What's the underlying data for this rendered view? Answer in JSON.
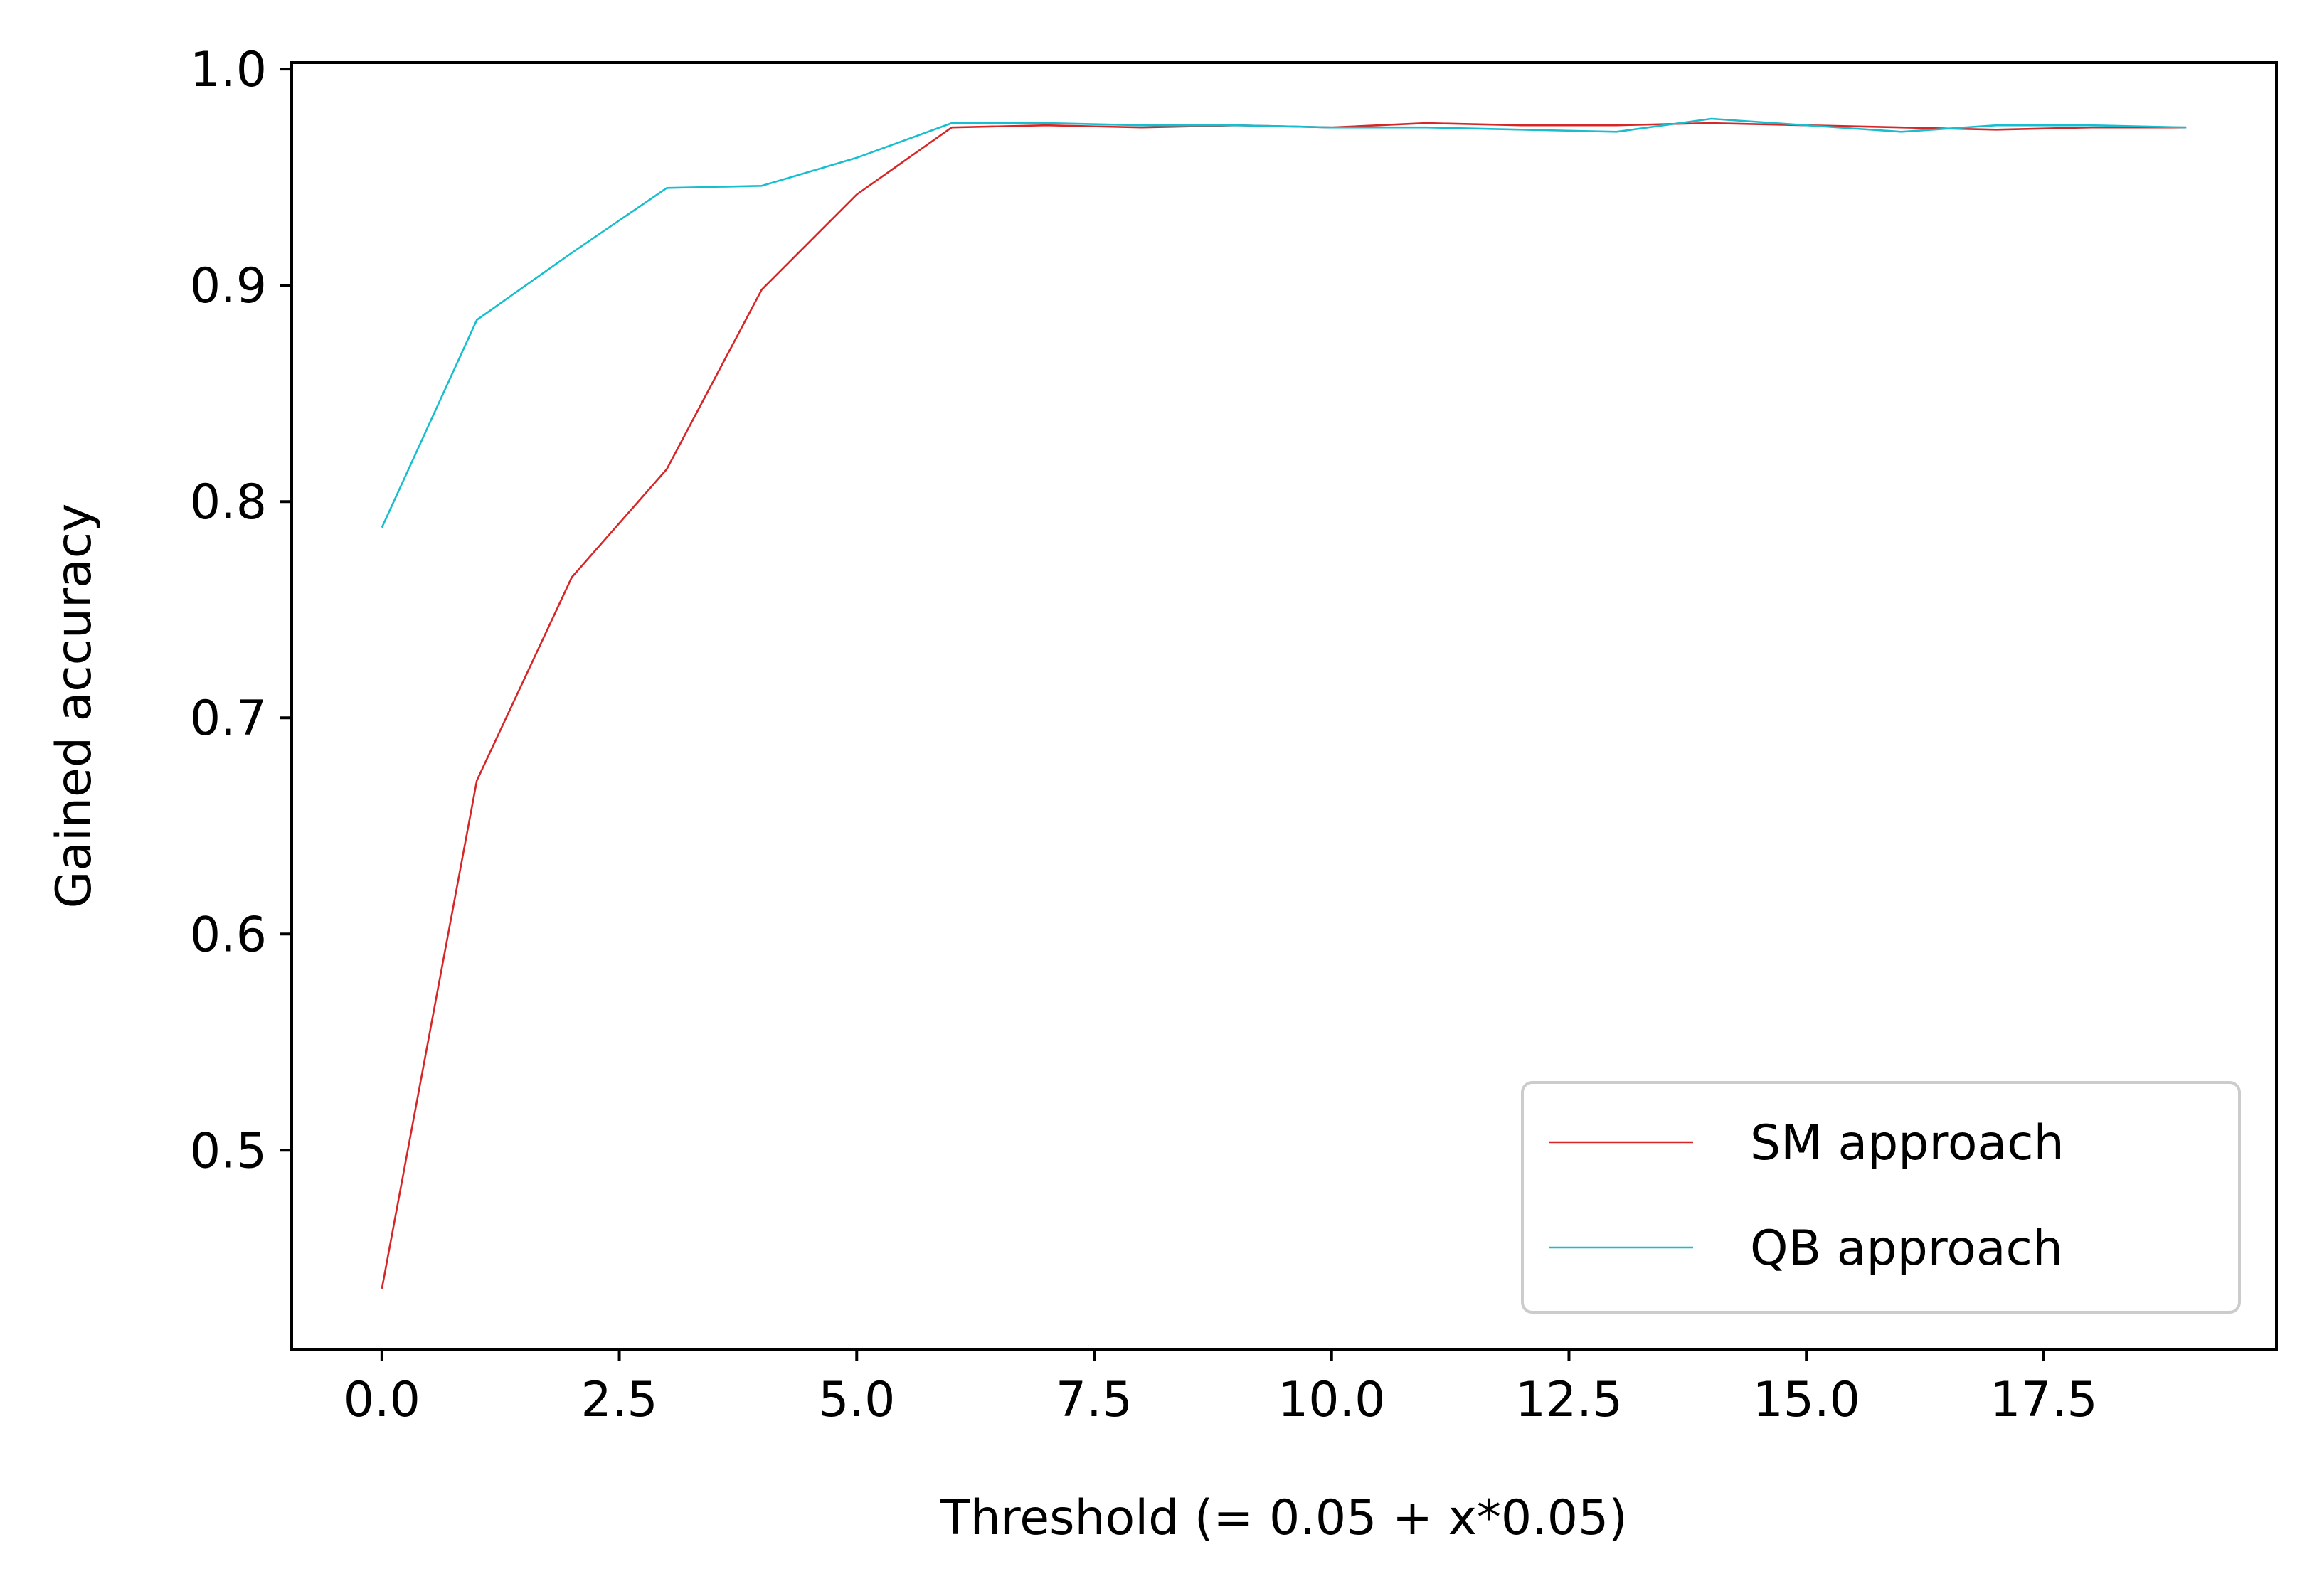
{
  "chart_data": {
    "type": "line",
    "title": "",
    "xlabel": "Threshold (= 0.05 + x*0.05)",
    "ylabel": "Gained accuracy",
    "xlim": [
      -0.95,
      19.95
    ],
    "ylim": [
      0.408,
      1.003
    ],
    "xticks": [
      0.0,
      2.5,
      5.0,
      7.5,
      10.0,
      12.5,
      15.0,
      17.5
    ],
    "xtick_labels": [
      "0.0",
      "2.5",
      "5.0",
      "7.5",
      "10.0",
      "12.5",
      "15.0",
      "17.5"
    ],
    "yticks": [
      0.5,
      0.6,
      0.7,
      0.8,
      0.9,
      1.0
    ],
    "ytick_labels": [
      "0.5",
      "0.6",
      "0.7",
      "0.8",
      "0.9",
      "1.0"
    ],
    "grid": false,
    "legend_position": "lower-right",
    "x": [
      0,
      1,
      2,
      3,
      4,
      5,
      6,
      7,
      8,
      9,
      10,
      11,
      12,
      13,
      14,
      15,
      16,
      17,
      18,
      19
    ],
    "series": [
      {
        "name": "SM approach",
        "color": "#d62728",
        "values": [
          0.436,
          0.671,
          0.765,
          0.815,
          0.898,
          0.942,
          0.973,
          0.974,
          0.973,
          0.974,
          0.973,
          0.975,
          0.974,
          0.974,
          0.975,
          0.974,
          0.973,
          0.972,
          0.973,
          0.973
        ]
      },
      {
        "name": "QB approach",
        "color": "#17becf",
        "values": [
          0.788,
          0.884,
          0.915,
          0.945,
          0.946,
          0.959,
          0.975,
          0.975,
          0.974,
          0.974,
          0.973,
          0.973,
          0.972,
          0.971,
          0.977,
          0.974,
          0.971,
          0.974,
          0.974,
          0.973
        ]
      }
    ]
  }
}
